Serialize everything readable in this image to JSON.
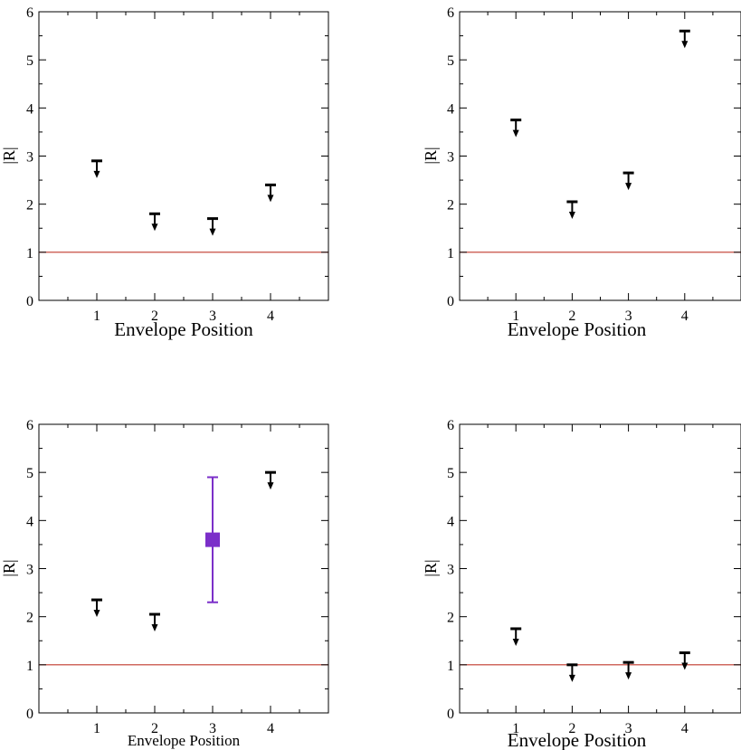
{
  "chart_data": [
    {
      "type": "scatter",
      "panel": "top-left",
      "title": "",
      "xlabel": "Envelope Position",
      "ylabel": "|R|",
      "xlim": [
        0,
        5
      ],
      "ylim": [
        0,
        6
      ],
      "xticks": [
        1,
        2,
        3,
        4
      ],
      "yticks": [
        0,
        1,
        2,
        3,
        4,
        5,
        6
      ],
      "reference_line": {
        "y": 1,
        "color": "#c0392b"
      },
      "upper_limits": [
        {
          "x": 1,
          "y": 2.9
        },
        {
          "x": 2,
          "y": 1.8
        },
        {
          "x": 3,
          "y": 1.7
        },
        {
          "x": 4,
          "y": 2.4
        }
      ],
      "measurements": []
    },
    {
      "type": "scatter",
      "panel": "top-right",
      "title": "",
      "xlabel": "Envelope Position",
      "ylabel": "|R|",
      "xlim": [
        0,
        5
      ],
      "ylim": [
        0,
        6
      ],
      "xticks": [
        1,
        2,
        3,
        4
      ],
      "yticks": [
        0,
        1,
        2,
        3,
        4,
        5,
        6
      ],
      "reference_line": {
        "y": 1,
        "color": "#c0392b"
      },
      "upper_limits": [
        {
          "x": 1,
          "y": 3.75
        },
        {
          "x": 2,
          "y": 2.05
        },
        {
          "x": 3,
          "y": 2.65
        },
        {
          "x": 4,
          "y": 5.6
        }
      ],
      "measurements": []
    },
    {
      "type": "scatter",
      "panel": "bottom-left",
      "title": "",
      "xlabel": "Envelope Position",
      "ylabel": "|R|",
      "xlim": [
        0,
        5
      ],
      "ylim": [
        0,
        6
      ],
      "xticks": [
        1,
        2,
        3,
        4
      ],
      "yticks": [
        0,
        1,
        2,
        3,
        4,
        5,
        6
      ],
      "reference_line": {
        "y": 1,
        "color": "#c0392b"
      },
      "upper_limits": [
        {
          "x": 1,
          "y": 2.35
        },
        {
          "x": 2,
          "y": 2.05
        },
        {
          "x": 4,
          "y": 5.0
        }
      ],
      "measurements": [
        {
          "x": 3,
          "y": 3.6,
          "err_low": 2.3,
          "err_high": 4.9,
          "color": "#7b2fc9"
        }
      ]
    },
    {
      "type": "scatter",
      "panel": "bottom-right",
      "title": "",
      "xlabel": "Envelope Position",
      "ylabel": "|R|",
      "xlim": [
        0,
        5
      ],
      "ylim": [
        0,
        6
      ],
      "xticks": [
        1,
        2,
        3,
        4
      ],
      "yticks": [
        0,
        1,
        2,
        3,
        4,
        5,
        6
      ],
      "reference_line": {
        "y": 1,
        "color": "#c0392b"
      },
      "upper_limits": [
        {
          "x": 1,
          "y": 1.75
        },
        {
          "x": 2,
          "y": 1.0
        },
        {
          "x": 3,
          "y": 1.05
        },
        {
          "x": 4,
          "y": 1.25
        }
      ],
      "measurements": []
    }
  ]
}
